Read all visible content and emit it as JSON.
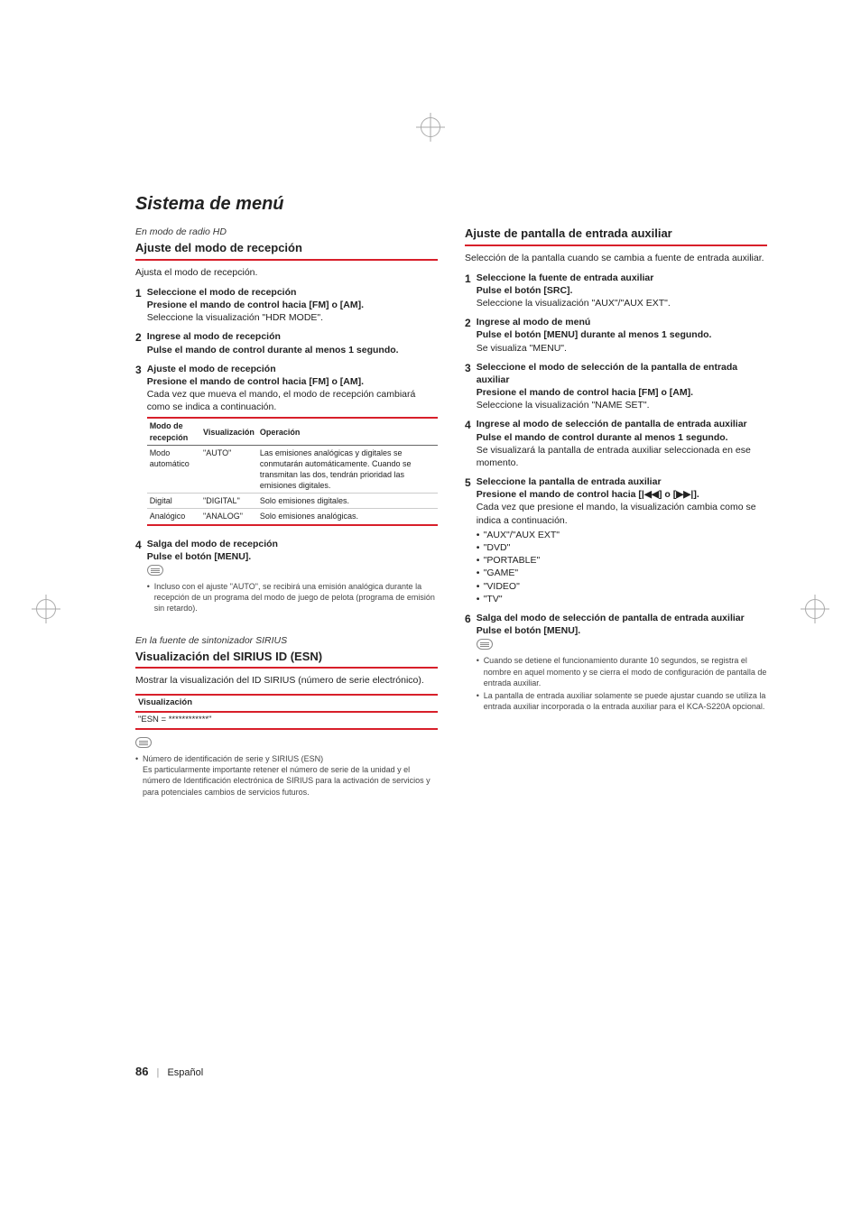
{
  "page": {
    "section_title": "Sistema de menú",
    "number": "86",
    "lang": "Español"
  },
  "accent_color": "#d81f2a",
  "left": {
    "block1": {
      "context": "En modo de radio HD",
      "heading": "Ajuste del modo de recepción",
      "intro": "Ajusta el modo de recepción.",
      "steps": [
        {
          "n": "1",
          "title": "Seleccione el modo de recepción",
          "action": "Presione el mando de control hacia [FM] o [AM].",
          "result": "Seleccione la visualización \"HDR MODE\"."
        },
        {
          "n": "2",
          "title": "Ingrese al modo de recepción",
          "action": "Pulse el mando de control durante al menos 1 segundo.",
          "result": ""
        },
        {
          "n": "3",
          "title": "Ajuste el modo de recepción",
          "action": "Presione el mando de control hacia [FM] o [AM].",
          "result": "Cada vez que mueva el mando, el modo de recepción cambiará como se indica a continuación."
        }
      ],
      "table": {
        "headers": [
          "Modo de recepción",
          "Visualización",
          "Operación"
        ],
        "rows": [
          [
            "Modo automático",
            "\"AUTO\"",
            "Las emisiones analógicas y digitales se conmutarán automáticamente. Cuando se transmitan las dos, tendrán prioridad las emisiones digitales."
          ],
          [
            "Digital",
            "\"DIGITAL\"",
            "Solo emisiones digitales."
          ],
          [
            "Analógico",
            "\"ANALOG\"",
            "Solo emisiones analógicas."
          ]
        ]
      },
      "step4": {
        "n": "4",
        "title": "Salga del modo de recepción",
        "action": "Pulse el botón [MENU].",
        "result": ""
      },
      "note": "Incluso con el ajuste \"AUTO\", se recibirá una emisión analógica durante la recepción de un programa del modo de juego de pelota (programa de emisión sin retardo)."
    },
    "block2": {
      "context": "En la fuente de sintonizador SIRIUS",
      "heading": "Visualización del SIRIUS ID (ESN)",
      "intro": "Mostrar la visualización del ID SIRIUS (número de serie electrónico).",
      "table": {
        "header": "Visualización",
        "value": "\"ESN = ************\""
      },
      "note_title": "Número de identificación de serie y SIRIUS (ESN)",
      "note_body": "Es particularmente importante retener el número de serie de la unidad y el número de Identificación electrónica de SIRIUS para la activación de servicios y para potenciales cambios de servicios futuros."
    }
  },
  "right": {
    "heading": "Ajuste de pantalla de entrada auxiliar",
    "intro": "Selección de la pantalla cuando se cambia a fuente de entrada auxiliar.",
    "steps": [
      {
        "n": "1",
        "title": "Seleccione la fuente de entrada auxiliar",
        "action": "Pulse el botón [SRC].",
        "result": "Seleccione la visualización \"AUX\"/\"AUX EXT\"."
      },
      {
        "n": "2",
        "title": "Ingrese al modo de menú",
        "action": "Pulse el botón [MENU] durante al menos 1 segundo.",
        "result": "Se visualiza \"MENU\"."
      },
      {
        "n": "3",
        "title": "Seleccione el modo de selección de la pantalla de entrada auxiliar",
        "action": "Presione el mando de control hacia [FM] o [AM].",
        "result": "Seleccione la visualización \"NAME SET\"."
      },
      {
        "n": "4",
        "title": "Ingrese al modo de selección de pantalla de entrada auxiliar",
        "action": "Pulse el mando de control durante al menos 1 segundo.",
        "result": "Se visualizará la pantalla de entrada auxiliar seleccionada en ese momento."
      },
      {
        "n": "5",
        "title": "Seleccione la pantalla de entrada auxiliar",
        "action": "Presione el mando de control hacia [|◀◀] o [▶▶|].",
        "result": "Cada vez que presione el mando, la visualización cambia como se indica a continuación."
      },
      {
        "n": "6",
        "title": "Salga del modo de selección de pantalla de entrada auxiliar",
        "action": "Pulse el botón [MENU].",
        "result": ""
      }
    ],
    "options": [
      "\"AUX\"/\"AUX EXT\"",
      "\"DVD\"",
      "\"PORTABLE\"",
      "\"GAME\"",
      "\"VIDEO\"",
      "\"TV\""
    ],
    "notes": [
      "Cuando se detiene el funcionamiento durante 10 segundos, se registra el nombre en aquel momento y se cierra el modo de configuración de pantalla de entrada auxiliar.",
      "La pantalla de entrada auxiliar solamente se puede ajustar cuando se utiliza la entrada auxiliar incorporada o la entrada auxiliar para el KCA-S220A opcional."
    ]
  }
}
